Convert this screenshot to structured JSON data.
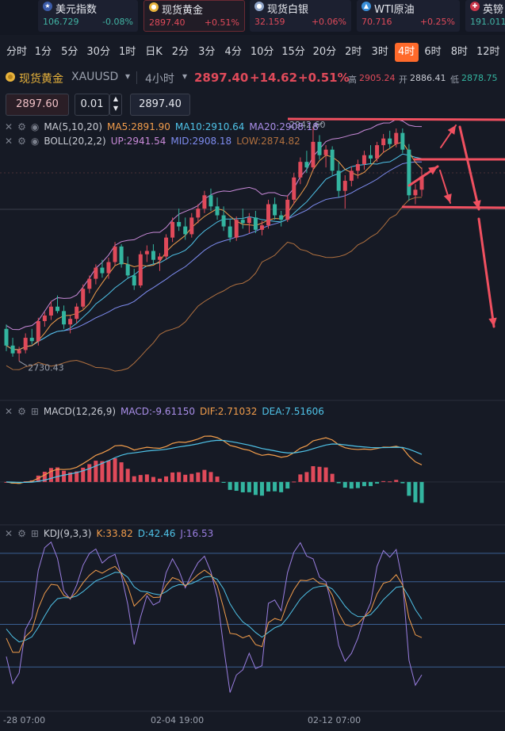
{
  "tickers": [
    {
      "name": "美元指数",
      "icon": "us-flag-icon",
      "price": "106.729",
      "change": "-0.08%",
      "dir": "down",
      "active": false
    },
    {
      "name": "现货黄金",
      "icon": "gold-coin-icon",
      "price": "2897.40",
      "change": "+0.51%",
      "dir": "up",
      "active": true
    },
    {
      "name": "现货白银",
      "icon": "silver-coin-icon",
      "price": "32.159",
      "change": "+0.06%",
      "dir": "up",
      "active": false
    },
    {
      "name": "WTI原油",
      "icon": "oil-icon",
      "price": "70.716",
      "change": "+0.25%",
      "dir": "up",
      "active": false
    },
    {
      "name": "英镑",
      "icon": "uk-flag-icon",
      "price": "191.011",
      "change": "",
      "dir": "down",
      "active": false
    }
  ],
  "timeframes": [
    "分时",
    "1分",
    "5分",
    "30分",
    "1时",
    "日K",
    "2分",
    "3分",
    "4分",
    "10分",
    "15分",
    "20分",
    "2时",
    "3时",
    "4时",
    "6时",
    "8时",
    "12时"
  ],
  "active_timeframe": "4时",
  "symbol": {
    "name": "现货黄金",
    "code": "XAUUSD",
    "interval": "4小时",
    "price": "2897.40",
    "change": "+14.62",
    "change_pct": "+0.51%",
    "high_label": "高",
    "high": "2905.24",
    "open_label": "开",
    "open": "2886.41",
    "low_label": "低",
    "low": "2878.75"
  },
  "order": {
    "sell_price": "2897.60",
    "lot": "0.01",
    "buy_price": "2897.40"
  },
  "indicators": {
    "ma": {
      "label": "MA(5,10,20)",
      "ma5": "MA5:2891.90",
      "ma10": "MA10:2910.64",
      "ma20": "MA20:2908.18"
    },
    "boll": {
      "label": "BOLL(20,2,2)",
      "up": "UP:2941.54",
      "mid": "MID:2908.18",
      "low": "LOW:2874.82"
    },
    "macd": {
      "label": "MACD(12,26,9)",
      "macd": "MACD:-9.61150",
      "dif": "DIF:2.71032",
      "dea": "DEA:7.51606"
    },
    "kdj": {
      "label": "KDJ(9,3,3)",
      "k": "K:33.82",
      "d": "D:42.46",
      "j": "J:16.53"
    }
  },
  "colors": {
    "up": "#e04a5a",
    "down": "#33b5a0",
    "ma5": "#f29d4b",
    "ma10": "#4fc3e8",
    "ma20": "#a98ee8",
    "boll_up": "#c98ad9",
    "boll_mid": "#7e8cf0",
    "boll_low": "#b0703f",
    "dif": "#f29d4b",
    "dea": "#4fc3e8",
    "j": "#9a7ee0",
    "annotation": "#f05060"
  },
  "chart_data": {
    "type": "candlestick",
    "annotations": {
      "max": "2942.60",
      "min": "2730.43"
    },
    "x_labels": [
      "-28 07:00",
      "02-04 19:00",
      "02-12 07:00"
    ],
    "price_range": [
      2715,
      2950
    ],
    "candles": [
      [
        2760,
        2764,
        2740,
        2745
      ],
      [
        2745,
        2752,
        2735,
        2738
      ],
      [
        2738,
        2744,
        2731,
        2741
      ],
      [
        2741,
        2756,
        2738,
        2752
      ],
      [
        2752,
        2760,
        2746,
        2749
      ],
      [
        2749,
        2770,
        2745,
        2767
      ],
      [
        2767,
        2775,
        2762,
        2772
      ],
      [
        2772,
        2785,
        2768,
        2780
      ],
      [
        2780,
        2790,
        2774,
        2776
      ],
      [
        2776,
        2781,
        2760,
        2764
      ],
      [
        2764,
        2772,
        2756,
        2769
      ],
      [
        2769,
        2783,
        2765,
        2780
      ],
      [
        2780,
        2800,
        2778,
        2796
      ],
      [
        2796,
        2808,
        2792,
        2805
      ],
      [
        2805,
        2818,
        2800,
        2815
      ],
      [
        2815,
        2822,
        2806,
        2810
      ],
      [
        2810,
        2824,
        2805,
        2820
      ],
      [
        2820,
        2838,
        2817,
        2834
      ],
      [
        2834,
        2836,
        2815,
        2818
      ],
      [
        2818,
        2825,
        2805,
        2808
      ],
      [
        2808,
        2814,
        2795,
        2799
      ],
      [
        2799,
        2830,
        2797,
        2827
      ],
      [
        2827,
        2835,
        2820,
        2830
      ],
      [
        2830,
        2836,
        2818,
        2822
      ],
      [
        2822,
        2828,
        2812,
        2825
      ],
      [
        2825,
        2845,
        2822,
        2842
      ],
      [
        2842,
        2860,
        2838,
        2856
      ],
      [
        2856,
        2868,
        2848,
        2852
      ],
      [
        2852,
        2860,
        2840,
        2845
      ],
      [
        2845,
        2864,
        2842,
        2860
      ],
      [
        2860,
        2872,
        2855,
        2868
      ],
      [
        2868,
        2884,
        2864,
        2880
      ],
      [
        2880,
        2886,
        2866,
        2870
      ],
      [
        2870,
        2878,
        2858,
        2862
      ],
      [
        2862,
        2870,
        2848,
        2852
      ],
      [
        2852,
        2858,
        2838,
        2842
      ],
      [
        2842,
        2861,
        2839,
        2858
      ],
      [
        2858,
        2868,
        2850,
        2855
      ],
      [
        2855,
        2864,
        2846,
        2860
      ],
      [
        2860,
        2866,
        2846,
        2849
      ],
      [
        2849,
        2857,
        2844,
        2853
      ],
      [
        2853,
        2876,
        2850,
        2872
      ],
      [
        2872,
        2878,
        2858,
        2862
      ],
      [
        2862,
        2866,
        2852,
        2858
      ],
      [
        2858,
        2880,
        2856,
        2876
      ],
      [
        2876,
        2900,
        2872,
        2896
      ],
      [
        2896,
        2914,
        2890,
        2910
      ],
      [
        2910,
        2920,
        2900,
        2905
      ],
      [
        2905,
        2942,
        2902,
        2928
      ],
      [
        2928,
        2934,
        2912,
        2916
      ],
      [
        2916,
        2925,
        2905,
        2921
      ],
      [
        2921,
        2924,
        2898,
        2902
      ],
      [
        2902,
        2910,
        2878,
        2884
      ],
      [
        2884,
        2898,
        2868,
        2893
      ],
      [
        2893,
        2906,
        2888,
        2902
      ],
      [
        2902,
        2912,
        2895,
        2908
      ],
      [
        2908,
        2920,
        2903,
        2916
      ],
      [
        2916,
        2925,
        2908,
        2913
      ],
      [
        2913,
        2928,
        2910,
        2925
      ],
      [
        2925,
        2935,
        2918,
        2931
      ],
      [
        2931,
        2938,
        2922,
        2926
      ],
      [
        2926,
        2940,
        2923,
        2936
      ],
      [
        2936,
        2940,
        2918,
        2921
      ],
      [
        2921,
        2926,
        2875,
        2880
      ],
      [
        2880,
        2890,
        2872,
        2885
      ],
      [
        2885,
        2905,
        2879,
        2897
      ]
    ],
    "macd_range": [
      -22,
      35
    ],
    "kdj_range": [
      -10,
      110
    ],
    "kdj_levels": [
      100,
      80,
      50,
      20
    ]
  }
}
